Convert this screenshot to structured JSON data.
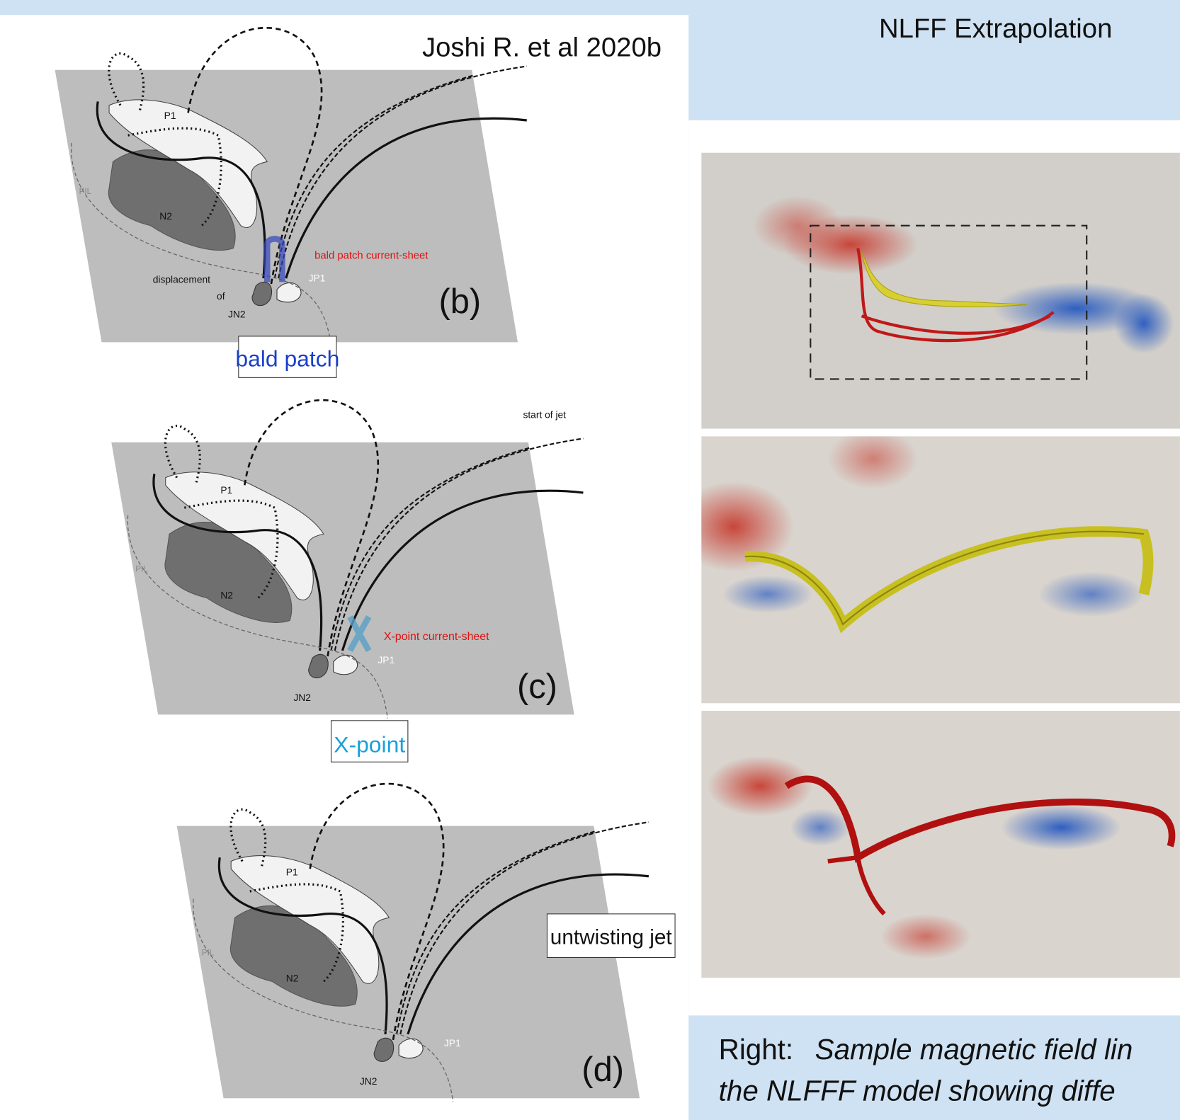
{
  "header": {
    "citation": "Joshi R. et al 2020b",
    "title": "NLFF Extrapolation"
  },
  "panels": [
    {
      "label": "(b)",
      "box": "bald patch",
      "annotations": [
        "P1",
        "N2",
        "PIL",
        "bald patch current-sheet",
        "displacement",
        "of",
        "JN2",
        "JP1"
      ]
    },
    {
      "label": "(c)",
      "box": "X-point",
      "annotations": [
        "P1",
        "N2",
        "PIL",
        "X-point current-sheet",
        "JN2",
        "JP1",
        "start of jet"
      ]
    },
    {
      "label": "(d)",
      "box": "untwisting jet",
      "annotations": [
        "P1",
        "N2",
        "PIL",
        "JN2",
        "JP1"
      ]
    }
  ],
  "caption": {
    "lead": "Right:",
    "lines": [
      "Sample magnetic field lin",
      "the NLFFF model showing diffe"
    ]
  }
}
